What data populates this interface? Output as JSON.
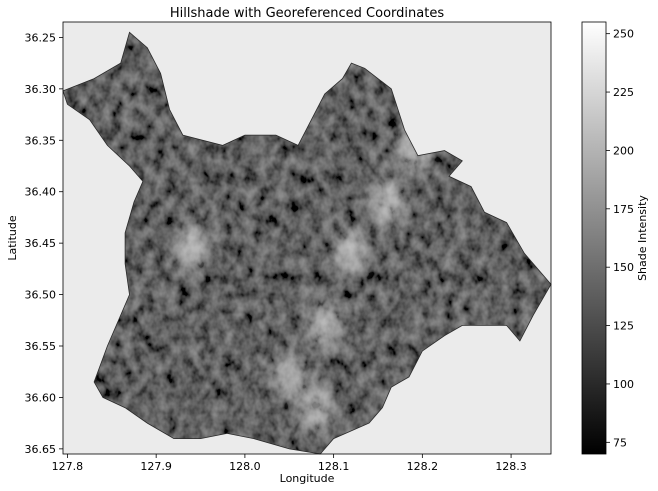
{
  "chart_data": {
    "type": "heatmap",
    "title": "Hillshade with Georeferenced Coordinates",
    "xlabel": "Longitude",
    "ylabel": "Latitude",
    "xlim": [
      127.795,
      128.345
    ],
    "ylim": [
      36.655,
      36.235
    ],
    "y_inverted": true,
    "xticks": [
      127.8,
      127.9,
      128.0,
      128.1,
      128.2,
      128.3
    ],
    "xtick_labels": [
      "127.8",
      "127.9",
      "128.0",
      "128.1",
      "128.2",
      "128.3"
    ],
    "yticks": [
      36.25,
      36.3,
      36.35,
      36.4,
      36.45,
      36.5,
      36.55,
      36.6,
      36.65
    ],
    "ytick_labels": [
      "36.25",
      "36.30",
      "36.35",
      "36.40",
      "36.45",
      "36.50",
      "36.55",
      "36.60",
      "36.65"
    ],
    "colormap": "gray",
    "background_color": "#ebebeb",
    "colorbar": {
      "label": "Shade Intensity",
      "range": [
        70,
        255
      ],
      "ticks": [
        75,
        100,
        125,
        150,
        175,
        200,
        225,
        250
      ],
      "tick_labels": [
        "75",
        "100",
        "125",
        "150",
        "175",
        "200",
        "225",
        "250"
      ]
    },
    "valid_region_outline": [
      [
        127.795,
        36.302
      ],
      [
        127.83,
        36.29
      ],
      [
        127.86,
        36.275
      ],
      [
        127.87,
        36.245
      ],
      [
        127.89,
        36.26
      ],
      [
        127.905,
        36.285
      ],
      [
        127.915,
        36.32
      ],
      [
        127.93,
        36.345
      ],
      [
        127.975,
        36.355
      ],
      [
        128.0,
        36.345
      ],
      [
        128.035,
        36.345
      ],
      [
        128.06,
        36.355
      ],
      [
        128.09,
        36.305
      ],
      [
        128.11,
        36.29
      ],
      [
        128.12,
        36.275
      ],
      [
        128.135,
        36.28
      ],
      [
        128.165,
        36.3
      ],
      [
        128.18,
        36.34
      ],
      [
        128.195,
        36.365
      ],
      [
        128.225,
        36.36
      ],
      [
        128.245,
        36.37
      ],
      [
        128.23,
        36.385
      ],
      [
        128.255,
        36.395
      ],
      [
        128.27,
        36.42
      ],
      [
        128.295,
        36.43
      ],
      [
        128.315,
        36.46
      ],
      [
        128.345,
        36.49
      ],
      [
        128.325,
        36.52
      ],
      [
        128.31,
        36.545
      ],
      [
        128.295,
        36.53
      ],
      [
        128.275,
        36.53
      ],
      [
        128.245,
        36.53
      ],
      [
        128.225,
        36.54
      ],
      [
        128.2,
        36.555
      ],
      [
        128.185,
        36.58
      ],
      [
        128.165,
        36.59
      ],
      [
        128.155,
        36.61
      ],
      [
        128.14,
        36.625
      ],
      [
        128.1,
        36.64
      ],
      [
        128.085,
        36.655
      ],
      [
        128.05,
        36.65
      ],
      [
        128.01,
        36.64
      ],
      [
        127.98,
        36.635
      ],
      [
        127.95,
        36.64
      ],
      [
        127.92,
        36.64
      ],
      [
        127.89,
        36.625
      ],
      [
        127.865,
        36.61
      ],
      [
        127.84,
        36.6
      ],
      [
        127.83,
        36.585
      ],
      [
        127.845,
        36.55
      ],
      [
        127.86,
        36.52
      ],
      [
        127.87,
        36.5
      ],
      [
        127.865,
        36.47
      ],
      [
        127.865,
        36.44
      ],
      [
        127.875,
        36.41
      ],
      [
        127.885,
        36.39
      ],
      [
        127.87,
        36.375
      ],
      [
        127.845,
        36.355
      ],
      [
        127.825,
        36.33
      ],
      [
        127.8,
        36.315
      ]
    ],
    "bright_features": [
      {
        "lon": 128.16,
        "lat": 36.41,
        "shade": 240
      },
      {
        "lon": 128.12,
        "lat": 36.46,
        "shade": 235
      },
      {
        "lon": 128.09,
        "lat": 36.53,
        "shade": 230
      },
      {
        "lon": 128.05,
        "lat": 36.58,
        "shade": 225
      },
      {
        "lon": 127.94,
        "lat": 36.455,
        "shade": 235
      },
      {
        "lon": 128.19,
        "lat": 36.36,
        "shade": 230
      },
      {
        "lon": 128.08,
        "lat": 36.61,
        "shade": 230
      }
    ]
  }
}
